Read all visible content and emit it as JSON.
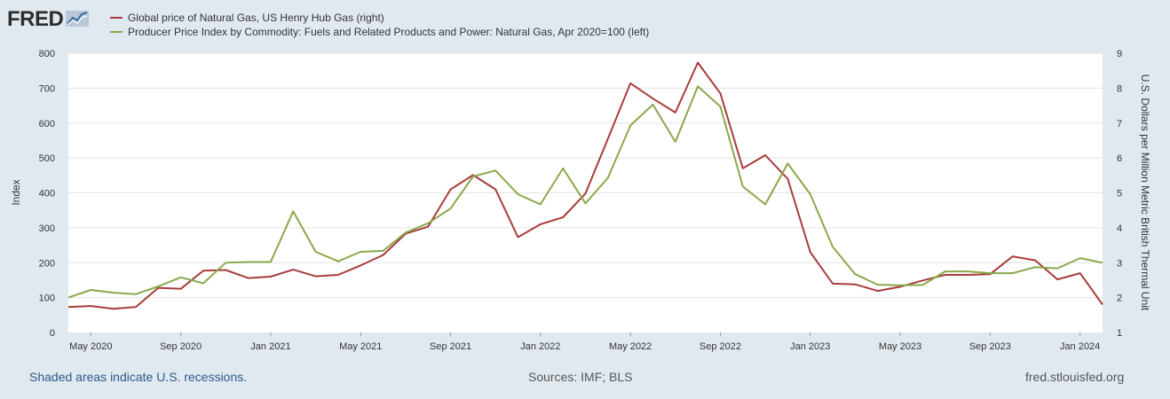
{
  "brand": {
    "logo_text": "FRED"
  },
  "legend": [
    {
      "label": "Global price of Natural Gas, US Henry Hub Gas (right)",
      "color": "#a83c3c"
    },
    {
      "label": "Producer Price Index by Commodity: Fuels and Related Products and Power: Natural Gas, Apr 2020=100 (left)",
      "color": "#8aa84a"
    }
  ],
  "footer": {
    "recession_note": "Shaded areas indicate U.S. recessions.",
    "sources": "Sources: IMF; BLS",
    "site": "fred.stlouisfed.org"
  },
  "chart_data": {
    "type": "line",
    "x_ticks": [
      "May 2020",
      "Sep 2020",
      "Jan 2021",
      "May 2021",
      "Sep 2021",
      "Jan 2022",
      "May 2022",
      "Sep 2022",
      "Jan 2023",
      "May 2023",
      "Sep 2023",
      "Jan 2024"
    ],
    "y_left": {
      "label": "Index",
      "min": 0,
      "max": 800,
      "ticks": [
        0,
        100,
        200,
        300,
        400,
        500,
        600,
        700,
        800
      ]
    },
    "y_right": {
      "label": "U.S. Dollars per Million Metric British Thermal Unit",
      "min": 1,
      "max": 9,
      "ticks": [
        1,
        2,
        3,
        4,
        5,
        6,
        7,
        8,
        9
      ]
    },
    "grid": true,
    "x": [
      "2020-04",
      "2020-05",
      "2020-06",
      "2020-07",
      "2020-08",
      "2020-09",
      "2020-10",
      "2020-11",
      "2020-12",
      "2021-01",
      "2021-02",
      "2021-03",
      "2021-04",
      "2021-05",
      "2021-06",
      "2021-07",
      "2021-08",
      "2021-09",
      "2021-10",
      "2021-11",
      "2021-12",
      "2022-01",
      "2022-02",
      "2022-03",
      "2022-04",
      "2022-05",
      "2022-06",
      "2022-07",
      "2022-08",
      "2022-09",
      "2022-10",
      "2022-11",
      "2022-12",
      "2023-01",
      "2023-02",
      "2023-03",
      "2023-04",
      "2023-05",
      "2023-06",
      "2023-07",
      "2023-08",
      "2023-09",
      "2023-10",
      "2023-11",
      "2023-12",
      "2024-01",
      "2024-02"
    ],
    "series": [
      {
        "name": "Global price of Natural Gas, US Henry Hub Gas (right)",
        "axis": "right",
        "color": "#a83c3c",
        "values": [
          1.73,
          1.76,
          1.68,
          1.73,
          2.28,
          2.25,
          2.77,
          2.79,
          2.56,
          2.6,
          2.8,
          2.61,
          2.65,
          2.92,
          3.22,
          3.83,
          4.03,
          5.1,
          5.51,
          5.1,
          3.73,
          4.1,
          4.3,
          4.98,
          6.55,
          8.14,
          7.7,
          7.3,
          8.73,
          7.85,
          5.7,
          6.08,
          5.4,
          3.3,
          2.4,
          2.38,
          2.19,
          2.31,
          2.49,
          2.65,
          2.65,
          2.67,
          3.18,
          3.07,
          2.52,
          2.7,
          1.8
        ]
      },
      {
        "name": "Producer Price Index by Commodity: Fuels and Related Products and Power: Natural Gas, Apr 2020=100 (left)",
        "axis": "left",
        "color": "#8aa84a",
        "values": [
          100,
          122,
          114,
          110,
          132,
          158,
          141,
          200,
          202,
          202,
          347,
          231,
          204,
          231,
          234,
          286,
          313,
          355,
          447,
          464,
          396,
          367,
          470,
          370,
          443,
          593,
          653,
          546,
          705,
          647,
          418,
          367,
          484,
          396,
          245,
          167,
          137,
          135,
          136,
          175,
          175,
          170,
          170,
          187,
          184,
          213,
          200
        ]
      }
    ]
  }
}
